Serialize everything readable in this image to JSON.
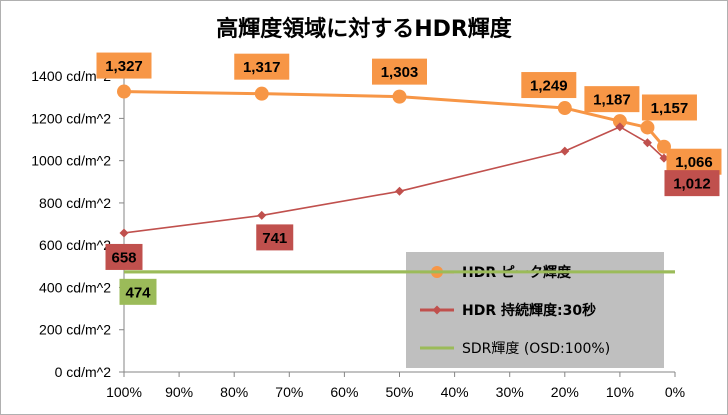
{
  "chart_data": {
    "type": "line",
    "title": "高輝度領域に対するHDR輝度",
    "categories": [
      "100%",
      "90%",
      "80%",
      "70%",
      "60%",
      "50%",
      "40%",
      "30%",
      "20%",
      "10%",
      "0%"
    ],
    "x_values": [
      100,
      75,
      50,
      20,
      10,
      5,
      2
    ],
    "ylim": [
      0,
      1500
    ],
    "y_ticks": [
      "0 cd/m^2",
      "200 cd/m^2",
      "400 cd/m^2",
      "600 cd/m^2",
      "800 cd/m^2",
      "1000 cd/m^2",
      "1200 cd/m^2",
      "1400 cd/m^2"
    ],
    "grid": false,
    "legend_position": "bottom-right",
    "series": [
      {
        "name": "HDR ピーク輝度",
        "color": "#f79646",
        "label_bg": "#f79646",
        "marker": "circle",
        "x": [
          100,
          75,
          50,
          20,
          10,
          5,
          2
        ],
        "values": [
          1327,
          1317,
          1303,
          1249,
          1187,
          1157,
          1066
        ],
        "labels": [
          "1,327",
          "1,317",
          "1,303",
          "1,249",
          "1,187",
          "1,157",
          "1,066"
        ]
      },
      {
        "name": "HDR 持続輝度:30秒",
        "color": "#c0504d",
        "label_bg": "#c0504d",
        "marker": "diamond",
        "x": [
          100,
          75,
          50,
          20,
          10,
          5,
          2
        ],
        "values": [
          658,
          741,
          855,
          1045,
          1160,
          1085,
          1012
        ],
        "labels": [
          "658",
          "741",
          "",
          "",
          "",
          "",
          "1,012"
        ]
      },
      {
        "name": "SDR輝度 (OSD:100%)",
        "color": "#9bbb59",
        "label_bg": "#9bbb59",
        "marker": "none",
        "x": [
          100,
          0
        ],
        "values": [
          474,
          474
        ],
        "labels": [
          "474",
          ""
        ]
      }
    ]
  }
}
